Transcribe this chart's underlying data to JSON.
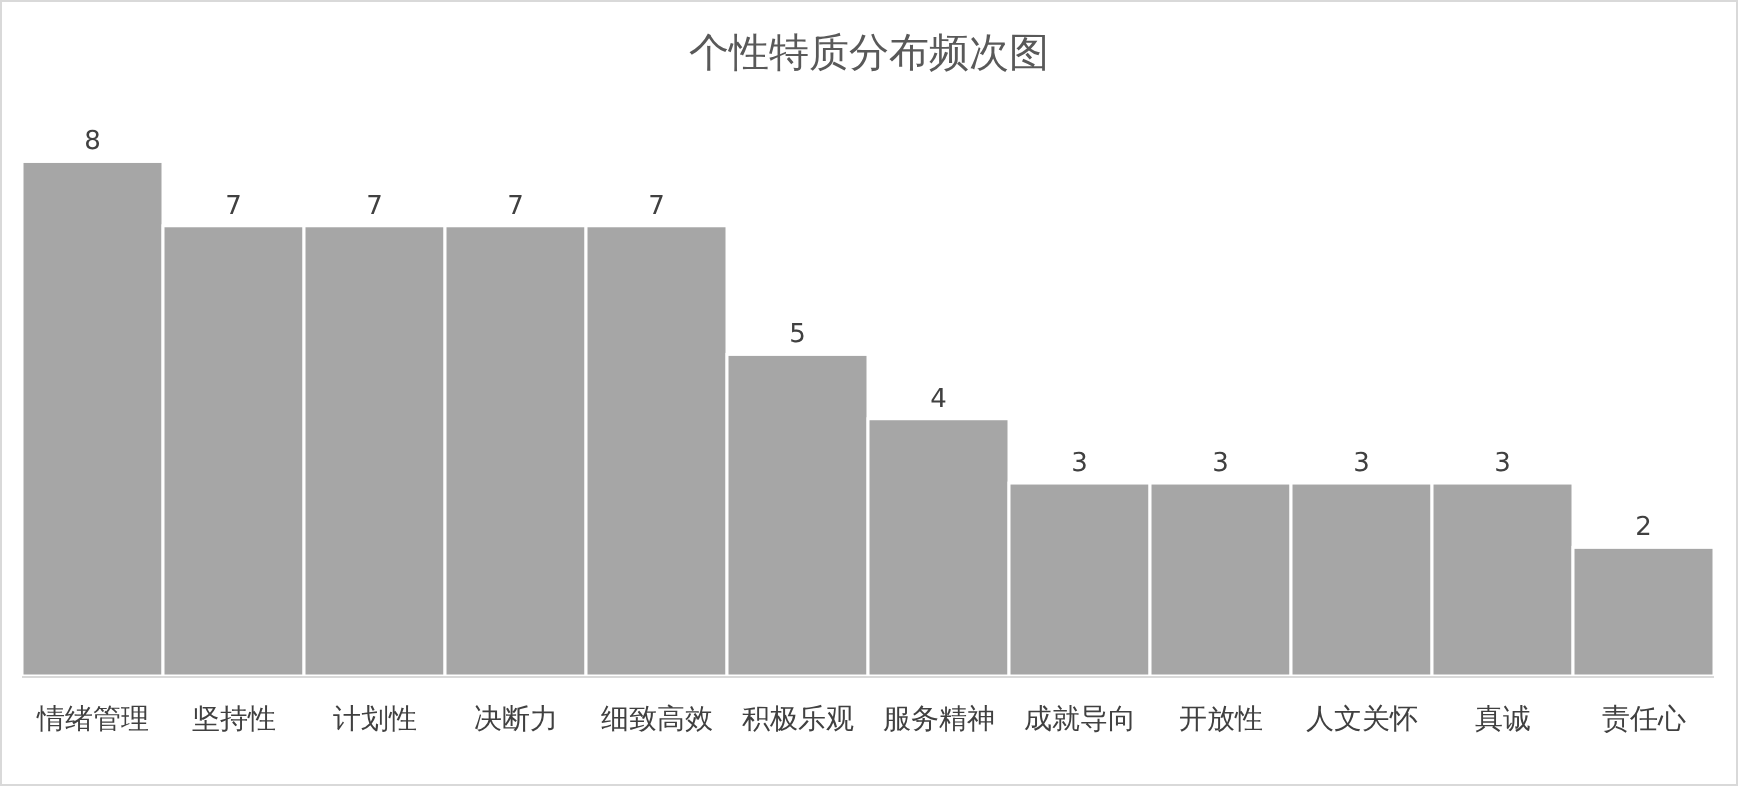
{
  "chart_data": {
    "type": "bar",
    "title": "个性特质分布频次图",
    "categories": [
      "情绪管理",
      "坚持性",
      "计划性",
      "决断力",
      "细致高效",
      "积极乐观",
      "服务精神",
      "成就导向",
      "开放性",
      "人文关怀",
      "真诚",
      "责任心"
    ],
    "values": [
      8,
      7,
      7,
      7,
      7,
      5,
      4,
      3,
      3,
      3,
      3,
      2
    ],
    "color": "#a6a6a6",
    "data_labels": true
  }
}
